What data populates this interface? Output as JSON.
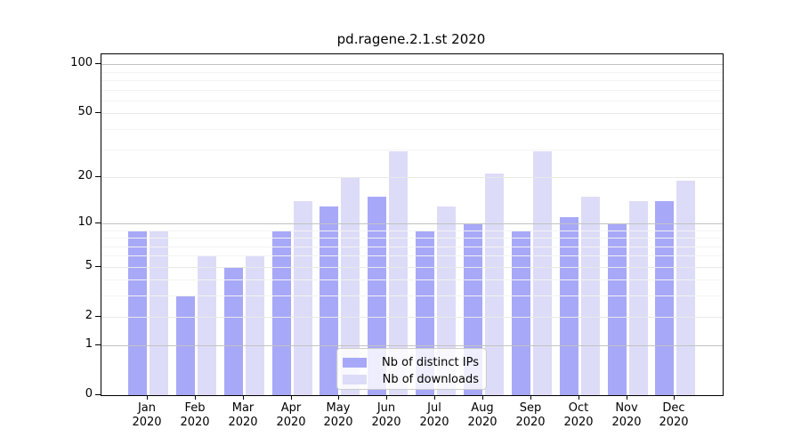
{
  "chart_data": {
    "type": "bar",
    "title": "pd.ragene.2.1.st 2020",
    "categories": [
      "Jan",
      "Feb",
      "Mar",
      "Apr",
      "May",
      "Jun",
      "Jul",
      "Aug",
      "Sep",
      "Oct",
      "Nov",
      "Dec"
    ],
    "x_year": "2020",
    "series": [
      {
        "name": "Nb of distinct IPs",
        "color": "#a8a8f8",
        "values": [
          9,
          3,
          5,
          9,
          13,
          15,
          9,
          10,
          9,
          11,
          10,
          14
        ]
      },
      {
        "name": "Nb of downloads",
        "color": "#dcdcf8",
        "values": [
          9,
          6,
          6,
          14,
          20,
          29,
          13,
          21,
          29,
          15,
          14,
          19
        ]
      }
    ],
    "xlabel": "",
    "ylabel": "",
    "y_axis": {
      "scale": "log1p",
      "tick_values": [
        0,
        1,
        2,
        5,
        10,
        20,
        50,
        100
      ],
      "tick_labels": [
        "0",
        "1",
        "2",
        "5",
        "10",
        "20",
        "50",
        "100"
      ],
      "emphasized_gridlines": [
        1,
        10,
        100
      ],
      "minor_gridlines": [
        3,
        4,
        6,
        7,
        8,
        9,
        30,
        40,
        60,
        70,
        80,
        90
      ],
      "range": [
        0,
        116
      ]
    },
    "grid": true,
    "legend": {
      "position": "lower-center",
      "entries": [
        "Nb of distinct IPs",
        "Nb of downloads"
      ]
    }
  }
}
